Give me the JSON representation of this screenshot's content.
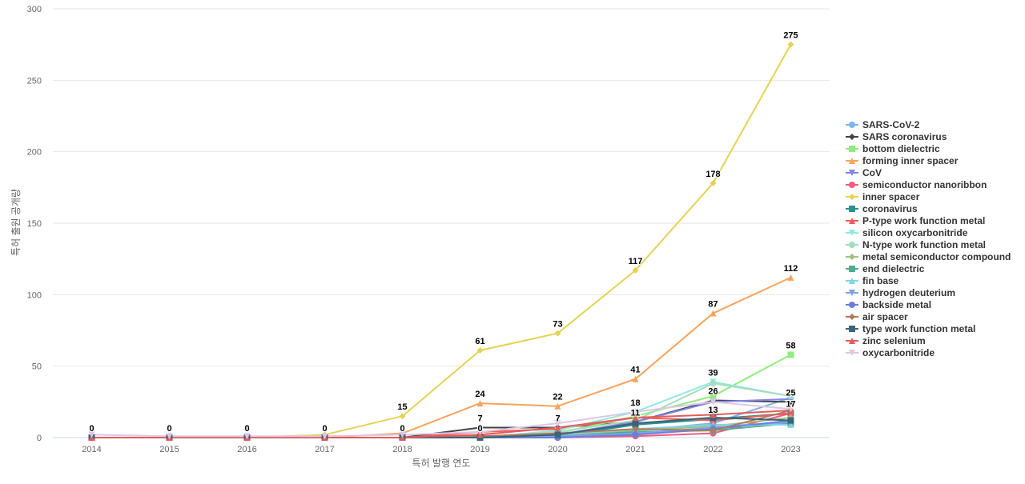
{
  "chart_data": {
    "type": "line",
    "title": "",
    "xlabel": "특허 발행 연도",
    "ylabel": "특허 출원 공개량",
    "ylim": [
      0,
      300
    ],
    "yticks": [
      0,
      50,
      100,
      150,
      200,
      250,
      300
    ],
    "grid": true,
    "legend_position": "right",
    "x": [
      "2014",
      "2015",
      "2016",
      "2017",
      "2018",
      "2019",
      "2020",
      "2021",
      "2022",
      "2023"
    ],
    "labeled_series": [
      "inner spacer",
      "forming inner spacer",
      "bottom dielectric",
      "silicon oxycarbonitride",
      "SARS coronavirus",
      "coronavirus",
      "P-type work function metal"
    ],
    "series": [
      {
        "name": "SARS-CoV-2",
        "color": "#7cb5ec",
        "marker": "circle",
        "values": [
          0,
          0,
          0,
          0,
          0,
          0,
          0,
          5,
          10,
          28
        ]
      },
      {
        "name": "SARS coronavirus",
        "color": "#434348",
        "marker": "diamond",
        "values": [
          0,
          0,
          0,
          0,
          0,
          7,
          7,
          11,
          26,
          25
        ]
      },
      {
        "name": "bottom dielectric",
        "color": "#90ed7d",
        "marker": "square",
        "values": [
          0,
          0,
          0,
          0,
          0,
          0,
          3,
          15,
          29,
          58
        ]
      },
      {
        "name": "forming inner spacer",
        "color": "#f7a35c",
        "marker": "triangle",
        "values": [
          0,
          0,
          0,
          0,
          3,
          24,
          22,
          41,
          87,
          112
        ]
      },
      {
        "name": "CoV",
        "color": "#8085e9",
        "marker": "triangle-down",
        "values": [
          0,
          0,
          0,
          0,
          0,
          0,
          2,
          11,
          25,
          27
        ]
      },
      {
        "name": "semiconductor nanoribbon",
        "color": "#f15c80",
        "marker": "circle",
        "values": [
          0,
          0,
          0,
          0,
          0,
          0,
          0,
          1,
          3,
          17
        ]
      },
      {
        "name": "inner spacer",
        "color": "#e4d354",
        "marker": "diamond",
        "values": [
          0,
          0,
          0,
          2,
          15,
          61,
          73,
          117,
          178,
          275
        ]
      },
      {
        "name": "coronavirus",
        "color": "#2b908f",
        "marker": "square",
        "values": [
          0,
          0,
          0,
          0,
          0,
          0,
          1,
          9,
          13,
          17
        ]
      },
      {
        "name": "P-type work function metal",
        "color": "#f45b5b",
        "marker": "triangle",
        "values": [
          0,
          0,
          0,
          0,
          0,
          4,
          6,
          14,
          12,
          17
        ]
      },
      {
        "name": "silicon oxycarbonitride",
        "color": "#91e8e1",
        "marker": "triangle-down",
        "values": [
          0,
          0,
          0,
          0,
          0,
          0,
          5,
          18,
          39,
          29
        ]
      },
      {
        "name": "N-type work function metal",
        "color": "#a6dcc0",
        "marker": "circle",
        "values": [
          0,
          0,
          0,
          0,
          0,
          0,
          4,
          12,
          38,
          29
        ]
      },
      {
        "name": "metal semiconductor compound",
        "color": "#a0c080",
        "marker": "diamond",
        "values": [
          0,
          0,
          0,
          0,
          0,
          0,
          2,
          5,
          8,
          14
        ]
      },
      {
        "name": "end dielectric",
        "color": "#4cae8c",
        "marker": "square",
        "values": [
          0,
          0,
          0,
          0,
          0,
          0,
          1,
          4,
          5,
          10
        ]
      },
      {
        "name": "fin base",
        "color": "#7fd4e8",
        "marker": "triangle",
        "values": [
          0,
          0,
          0,
          0,
          0,
          1,
          2,
          6,
          9,
          9
        ]
      },
      {
        "name": "hydrogen deuterium",
        "color": "#7ca3e8",
        "marker": "triangle-down",
        "values": [
          0,
          0,
          0,
          0,
          0,
          0,
          1,
          3,
          7,
          11
        ]
      },
      {
        "name": "backside metal",
        "color": "#6a7fdc",
        "marker": "circle",
        "values": [
          0,
          0,
          0,
          0,
          0,
          0,
          0,
          2,
          6,
          12
        ]
      },
      {
        "name": "air spacer",
        "color": "#b07a5c",
        "marker": "diamond",
        "values": [
          0,
          0,
          0,
          0,
          0,
          1,
          3,
          6,
          5,
          19
        ]
      },
      {
        "name": "type work function metal",
        "color": "#3b6478",
        "marker": "square",
        "values": [
          0,
          0,
          0,
          0,
          0,
          0,
          2,
          10,
          14,
          12
        ]
      },
      {
        "name": "zinc selenium",
        "color": "#e25c5c",
        "marker": "triangle",
        "values": [
          0,
          0,
          0,
          0,
          0,
          2,
          7,
          14,
          16,
          19
        ]
      },
      {
        "name": "oxycarbonitride",
        "color": "#dcc8e6",
        "marker": "triangle-down",
        "values": [
          2,
          1,
          1,
          1,
          2,
          4,
          10,
          18,
          25,
          20
        ]
      }
    ]
  }
}
